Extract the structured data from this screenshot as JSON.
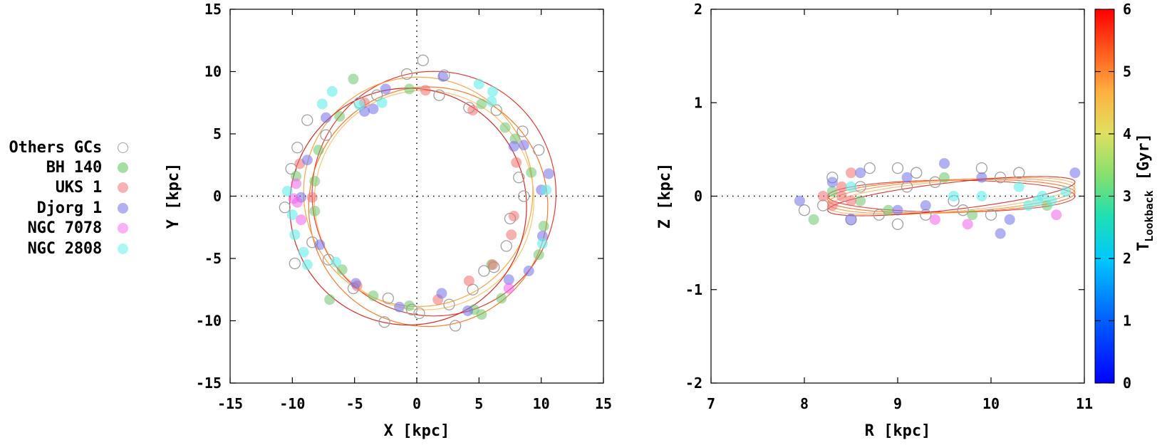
{
  "legend": {
    "items": [
      {
        "label": "Others GCs",
        "color": "#a0a0a0",
        "filled": false
      },
      {
        "label": "BH 140",
        "color": "#7fd07f",
        "filled": true
      },
      {
        "label": "UKS 1",
        "color": "#f4a0a0",
        "filled": true
      },
      {
        "label": "Djorg 1",
        "color": "#9c9cf0",
        "filled": true
      },
      {
        "label": "NGC 7078",
        "color": "#f79ef3",
        "filled": true
      },
      {
        "label": "NGC 2808",
        "color": "#9df5f2",
        "filled": true
      }
    ]
  },
  "colorbar": {
    "label_main": "T",
    "label_sub": "Lookback",
    "label_unit": "[Gyr]",
    "min": 0,
    "max": 6,
    "ticks": [
      "0",
      "1",
      "2",
      "3",
      "4",
      "5",
      "6"
    ]
  },
  "chart_data": [
    {
      "type": "scatter",
      "panel": "left",
      "xlabel": "X [kpc]",
      "ylabel": "Y [kpc]",
      "xlim": [
        -15,
        15
      ],
      "ylim": [
        -15,
        15
      ],
      "xticks": [
        "-15",
        "-10",
        "-5",
        "0",
        "5",
        "10",
        "15"
      ],
      "yticks": [
        "-15",
        "-10",
        "-5",
        "0",
        "5",
        "10",
        "15"
      ],
      "grid": false,
      "series": [
        {
          "name": "Others GCs",
          "points": [
            [
              0.5,
              10.9
            ],
            [
              2.2,
              9.7
            ],
            [
              -0.8,
              9.8
            ],
            [
              1.8,
              8.1
            ],
            [
              4.2,
              7.1
            ],
            [
              6.4,
              6.9
            ],
            [
              8.5,
              5.2
            ],
            [
              9.8,
              3.7
            ],
            [
              8.2,
              1.5
            ],
            [
              8.6,
              0.0
            ],
            [
              7.5,
              -1.8
            ],
            [
              7.2,
              -4.0
            ],
            [
              6.2,
              -5.7
            ],
            [
              4.5,
              -7.5
            ],
            [
              2.6,
              -8.7
            ],
            [
              -0.4,
              -9.1
            ],
            [
              -2.3,
              -8.2
            ],
            [
              -5.1,
              -7.4
            ],
            [
              -7.1,
              -5.1
            ],
            [
              -8.4,
              -3.7
            ],
            [
              -9.8,
              -5.4
            ],
            [
              -10.6,
              -0.9
            ],
            [
              -9.6,
              3.9
            ],
            [
              -7.3,
              4.9
            ],
            [
              -4.6,
              7.5
            ],
            [
              -3.2,
              8.1
            ],
            [
              0.2,
              -9.4
            ],
            [
              -2.6,
              -10.1
            ],
            [
              3.1,
              -10.4
            ],
            [
              -8.8,
              6.1
            ],
            [
              -10.1,
              2.2
            ],
            [
              5.4,
              -6.0
            ]
          ]
        },
        {
          "name": "BH 140",
          "points": [
            [
              -5.1,
              9.4
            ],
            [
              -0.6,
              8.6
            ],
            [
              5.2,
              7.4
            ],
            [
              7.9,
              4.6
            ],
            [
              9.2,
              1.9
            ],
            [
              10.2,
              -2.4
            ],
            [
              9.8,
              -4.7
            ],
            [
              6.8,
              -8.2
            ],
            [
              4.6,
              -9.1
            ],
            [
              5.2,
              -9.5
            ],
            [
              -0.6,
              -8.8
            ],
            [
              -3.5,
              -8.0
            ],
            [
              -7.0,
              -8.3
            ],
            [
              -6.0,
              -5.9
            ],
            [
              -8.2,
              -1.2
            ],
            [
              -8.2,
              1.2
            ],
            [
              -7.9,
              3.7
            ],
            [
              -6.2,
              6.4
            ],
            [
              -9.7,
              1.6
            ],
            [
              6.0,
              -5.5
            ],
            [
              7.1,
              5.5
            ]
          ]
        },
        {
          "name": "UKS 1",
          "points": [
            [
              0.7,
              8.5
            ],
            [
              4.5,
              6.9
            ],
            [
              8.0,
              2.7
            ],
            [
              7.8,
              -1.6
            ],
            [
              7.6,
              -3.1
            ],
            [
              6.1,
              -5.5
            ],
            [
              4.2,
              -6.8
            ],
            [
              1.7,
              -8.3
            ],
            [
              -4.8,
              -7.2
            ],
            [
              -8.4,
              -0.1
            ],
            [
              -9.4,
              2.6
            ],
            [
              -4.2,
              7.5
            ]
          ]
        },
        {
          "name": "Djorg 1",
          "points": [
            [
              2.1,
              9.6
            ],
            [
              -2.5,
              8.6
            ],
            [
              -3.5,
              7.0
            ],
            [
              -7.3,
              6.3
            ],
            [
              -8.8,
              2.9
            ],
            [
              -9.3,
              -0.1
            ],
            [
              -7.8,
              -3.9
            ],
            [
              -4.9,
              -7.0
            ],
            [
              -1.4,
              -8.9
            ],
            [
              2.0,
              -7.8
            ],
            [
              4.1,
              -9.2
            ],
            [
              7.4,
              -6.7
            ],
            [
              9.0,
              -6.0
            ],
            [
              10.1,
              -3.2
            ],
            [
              10.6,
              1.8
            ],
            [
              10.0,
              0.5
            ],
            [
              8.6,
              4.1
            ],
            [
              7.8,
              4.0
            ],
            [
              -4.2,
              6.8
            ]
          ]
        },
        {
          "name": "NGC 7078",
          "points": [
            [
              -9.9,
              -0.2
            ],
            [
              -9.7,
              1.0
            ],
            [
              -9.6,
              -0.5
            ],
            [
              -9.3,
              -1.9
            ],
            [
              7.4,
              -7.4
            ]
          ]
        },
        {
          "name": "NGC 2808",
          "points": [
            [
              -10.4,
              0.4
            ],
            [
              -10.0,
              -1.5
            ],
            [
              -9.8,
              -3.1
            ],
            [
              -9.1,
              -4.5
            ],
            [
              -7.6,
              7.4
            ],
            [
              -6.8,
              8.4
            ],
            [
              -4.6,
              7.3
            ],
            [
              -2.8,
              7.5
            ],
            [
              5.0,
              9.0
            ],
            [
              6.1,
              8.4
            ],
            [
              6.0,
              7.6
            ],
            [
              10.4,
              0.5
            ],
            [
              10.1,
              -3.8
            ],
            [
              -8.8,
              -5.5
            ],
            [
              -6.5,
              -5.3
            ]
          ]
        }
      ],
      "orbits": [
        {
          "radius": 9.8,
          "cx": 0.8,
          "cy": 0.2,
          "rot": 0,
          "color": "#e8231a",
          "count": 1
        },
        {
          "radius": 9.6,
          "cx": 0.4,
          "cy": -0.6,
          "rot": 25,
          "color": "#ff6a10",
          "count": 1
        },
        {
          "radius": 9.2,
          "cx": -0.2,
          "cy": 0.8,
          "rot": 55,
          "color": "#ff9a30",
          "count": 1
        },
        {
          "radius": 8.8,
          "cx": 0.5,
          "cy": 0.2,
          "rot": 80,
          "color": "#ffbe60",
          "count": 1
        },
        {
          "radius": 9.5,
          "cx": -0.5,
          "cy": -0.3,
          "rot": 110,
          "color": "#d81010",
          "count": 1
        }
      ]
    },
    {
      "type": "scatter",
      "panel": "right",
      "xlabel": "R [kpc]",
      "ylabel": "Z [kpc]",
      "xlim": [
        7,
        11
      ],
      "ylim": [
        -2,
        2
      ],
      "xticks": [
        "7",
        "8",
        "9",
        "10",
        "11"
      ],
      "yticks": [
        "-2",
        "-1",
        "0",
        "1",
        "2"
      ],
      "grid": false,
      "series": [
        {
          "name": "Others GCs",
          "points": [
            [
              8.0,
              -0.15
            ],
            [
              8.3,
              0.2
            ],
            [
              8.7,
              0.3
            ],
            [
              9.0,
              0.3
            ],
            [
              9.2,
              0.25
            ],
            [
              9.4,
              0.15
            ],
            [
              9.6,
              -0.05
            ],
            [
              9.9,
              0.3
            ],
            [
              10.1,
              0.2
            ],
            [
              10.3,
              0.25
            ],
            [
              9.0,
              -0.3
            ],
            [
              8.8,
              -0.2
            ],
            [
              8.5,
              -0.25
            ],
            [
              9.3,
              -0.2
            ],
            [
              8.2,
              -0.1
            ],
            [
              10.0,
              -0.2
            ],
            [
              9.7,
              -0.15
            ],
            [
              8.6,
              0.1
            ],
            [
              9.1,
              0.1
            ]
          ]
        },
        {
          "name": "BH 140",
          "points": [
            [
              8.1,
              -0.25
            ],
            [
              8.3,
              0.05
            ],
            [
              9.5,
              0.2
            ],
            [
              10.6,
              -0.1
            ],
            [
              8.9,
              -0.15
            ],
            [
              9.8,
              -0.2
            ],
            [
              8.6,
              -0.05
            ]
          ]
        },
        {
          "name": "UKS 1",
          "points": [
            [
              8.4,
              0.0
            ],
            [
              8.5,
              -0.05
            ],
            [
              8.4,
              0.1
            ],
            [
              8.5,
              0.25
            ],
            [
              8.3,
              -0.1
            ],
            [
              8.2,
              0.0
            ]
          ]
        },
        {
          "name": "Djorg 1",
          "points": [
            [
              7.95,
              -0.05
            ],
            [
              8.3,
              0.15
            ],
            [
              8.6,
              0.25
            ],
            [
              9.0,
              -0.15
            ],
            [
              9.3,
              -0.1
            ],
            [
              9.5,
              0.35
            ],
            [
              9.9,
              0.2
            ],
            [
              10.1,
              -0.4
            ],
            [
              10.9,
              0.25
            ],
            [
              8.5,
              -0.25
            ],
            [
              9.1,
              0.2
            ],
            [
              10.2,
              -0.25
            ]
          ]
        },
        {
          "name": "NGC 7078",
          "points": [
            [
              9.75,
              -0.3
            ],
            [
              10.7,
              -0.2
            ],
            [
              9.4,
              -0.25
            ]
          ]
        },
        {
          "name": "NGC 2808",
          "points": [
            [
              10.5,
              -0.05
            ],
            [
              10.3,
              0.1
            ],
            [
              10.55,
              0.0
            ],
            [
              10.8,
              0.05
            ],
            [
              10.65,
              -0.05
            ],
            [
              9.6,
              0.0
            ],
            [
              9.9,
              0.0
            ],
            [
              10.4,
              -0.1
            ],
            [
              8.5,
              0.1
            ]
          ]
        }
      ],
      "orbits": [
        {
          "rmin": 8.25,
          "rmax": 10.9,
          "zamp": 0.2,
          "color": "#e8231a",
          "count": 5
        }
      ]
    }
  ]
}
